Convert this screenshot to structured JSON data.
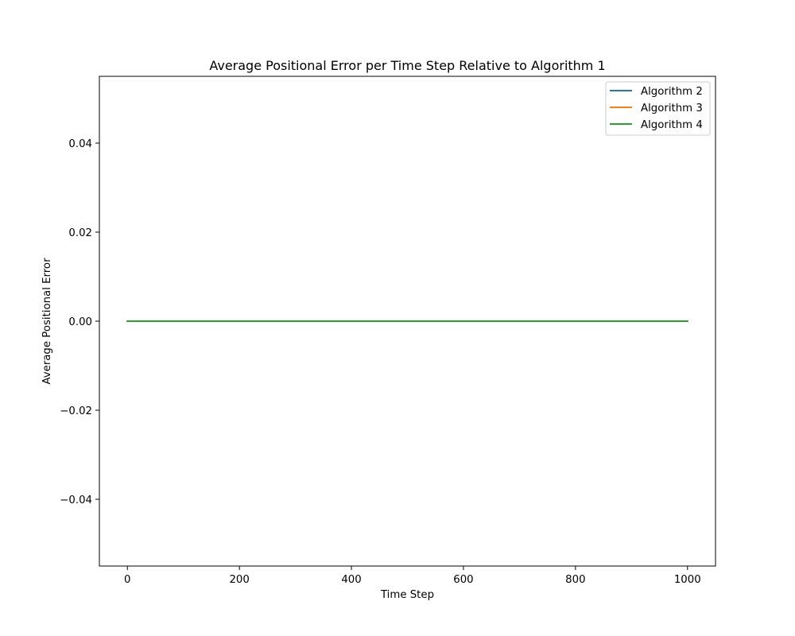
{
  "chart_data": {
    "type": "line",
    "title": "Average Positional Error per Time Step Relative to Algorithm 1",
    "xlabel": "Time Step",
    "ylabel": "Average Positional Error",
    "xlim": [
      -50,
      1050
    ],
    "ylim": [
      -0.055,
      0.055
    ],
    "xticks": [
      0,
      200,
      400,
      600,
      800,
      1000
    ],
    "xtick_labels": [
      "0",
      "200",
      "400",
      "600",
      "800",
      "1000"
    ],
    "yticks": [
      -0.04,
      -0.02,
      0.0,
      0.02,
      0.04
    ],
    "ytick_labels": [
      "−0.04",
      "−0.02",
      "0.00",
      "0.02",
      "0.04"
    ],
    "grid": false,
    "legend_position": "top-right",
    "series": [
      {
        "name": "Algorithm 2",
        "color": "#1f77b4",
        "x": [
          0,
          1000
        ],
        "y": [
          0,
          0
        ]
      },
      {
        "name": "Algorithm 3",
        "color": "#ff7f0e",
        "x": [
          0,
          1000
        ],
        "y": [
          0,
          0
        ]
      },
      {
        "name": "Algorithm 4",
        "color": "#2ca02c",
        "x": [
          0,
          1000
        ],
        "y": [
          0,
          0
        ]
      }
    ]
  }
}
